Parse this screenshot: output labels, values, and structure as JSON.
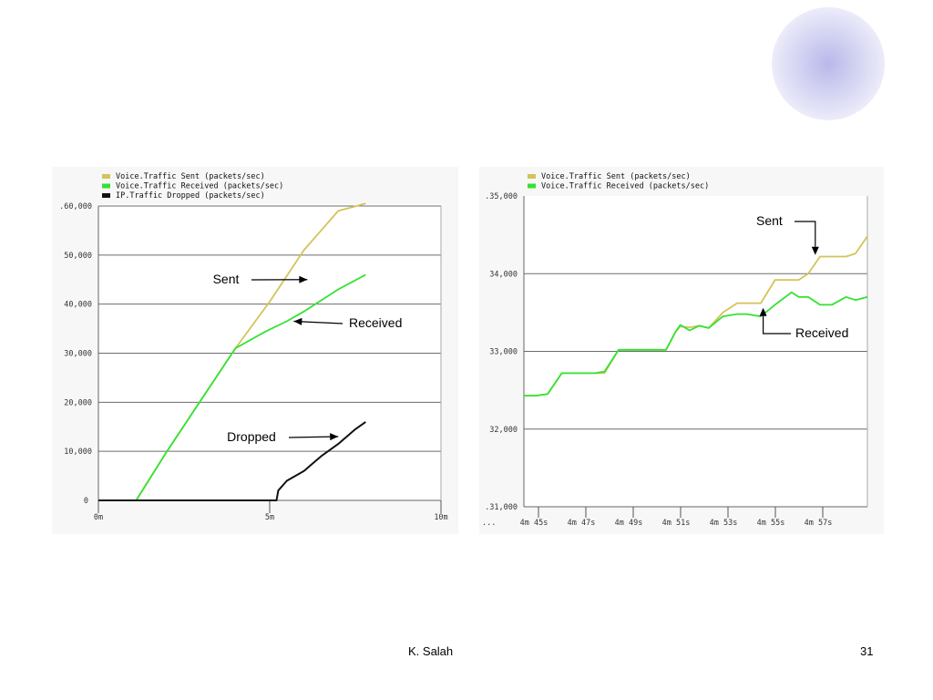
{
  "footer": {
    "author": "K. Salah",
    "page": "31"
  },
  "colors": {
    "sent": "#d4c35a",
    "received": "#33e233",
    "dropped": "#111111",
    "panel_bg": "#f7f7f7",
    "decor_circle": "#c8c8ee"
  },
  "chart_data": [
    {
      "type": "line",
      "x_ticks": [
        "0m",
        "5m",
        "10m"
      ],
      "xlim": [
        0,
        10
      ],
      "y_ticks": [
        "0",
        "10,000",
        "20,000",
        "30,000",
        "40,000",
        "50,000",
        "60,000"
      ],
      "ylim": [
        0,
        60000
      ],
      "grid": true,
      "legend": {
        "position": "top-left",
        "entries": [
          "Voice.Traffic Sent (packets/sec)",
          "Voice.Traffic Received (packets/sec)",
          "IP.Traffic Dropped (packets/sec)"
        ]
      },
      "series": [
        {
          "name": "Voice.Traffic Sent (packets/sec)",
          "color": "#d4c35a",
          "x": [
            0,
            1.1,
            2,
            3,
            4,
            5,
            6,
            7,
            7.8
          ],
          "y": [
            0,
            0,
            10000,
            20500,
            31000,
            40500,
            51000,
            59000,
            60500
          ]
        },
        {
          "name": "Voice.Traffic Received (packets/sec)",
          "color": "#33e233",
          "x": [
            0,
            1.1,
            2,
            3,
            4,
            4.9,
            5.5,
            6,
            7,
            7.8
          ],
          "y": [
            0,
            0,
            10000,
            20500,
            31000,
            34500,
            36500,
            38500,
            43000,
            46000
          ]
        },
        {
          "name": "IP.Traffic Dropped (packets/sec)",
          "color": "#111111",
          "x": [
            0,
            5.2,
            5.25,
            5.5,
            6,
            6.5,
            7,
            7.5,
            7.8
          ],
          "y": [
            0,
            0,
            2000,
            4000,
            6000,
            9000,
            11500,
            14500,
            16000
          ]
        }
      ],
      "annotations": [
        {
          "text": "Sent",
          "target_x": 6.1,
          "target_y": 45000
        },
        {
          "text": "Received",
          "target_x": 5.7,
          "target_y": 36500
        },
        {
          "text": "Dropped",
          "target_x": 7.0,
          "target_y": 13000
        }
      ]
    },
    {
      "type": "line",
      "x_ticks": [
        "4m 45s",
        "4m 47s",
        "4m 49s",
        "4m 51s",
        "4m 53s",
        "4m 55s",
        "4m 57s"
      ],
      "x_prefix": "...",
      "xlim": [
        284,
        298.5
      ],
      "y_ticks": [
        "31,000",
        "32,000",
        "33,000",
        "34,000",
        "35,000"
      ],
      "ylim": [
        31000,
        35000
      ],
      "grid": true,
      "legend": {
        "position": "top-left",
        "entries": [
          "Voice.Traffic Sent (packets/sec)",
          "Voice.Traffic Received (packets/sec)"
        ]
      },
      "series": [
        {
          "name": "Voice.Traffic Sent (packets/sec)",
          "color": "#d4c35a",
          "x": [
            284,
            284.5,
            285,
            285.6,
            286,
            287,
            287.4,
            288,
            289,
            289.4,
            290,
            290.4,
            290.6,
            291,
            291.4,
            291.8,
            292.4,
            293,
            293.4,
            294,
            294.6,
            295.3,
            295.6,
            296,
            296.5,
            297,
            297.6,
            298,
            298.5
          ],
          "y": [
            32430,
            32430,
            32450,
            32720,
            32720,
            32720,
            32720,
            33020,
            33020,
            33020,
            33020,
            33250,
            33320,
            33310,
            33330,
            33300,
            33500,
            33620,
            33620,
            33620,
            33920,
            33920,
            33920,
            34000,
            34220,
            34220,
            34220,
            34260,
            34480
          ]
        },
        {
          "name": "Voice.Traffic Received (packets/sec)",
          "color": "#33e233",
          "x": [
            284,
            284.5,
            285,
            285.6,
            286,
            287,
            287.4,
            288,
            289,
            289.4,
            290,
            290.4,
            290.6,
            291,
            291.4,
            291.8,
            292.4,
            293,
            293.4,
            294,
            294.6,
            295.3,
            295.6,
            296,
            296.5,
            297,
            297.6,
            298,
            298.5
          ],
          "y": [
            32430,
            32430,
            32450,
            32720,
            32720,
            32720,
            32740,
            33020,
            33020,
            33020,
            33020,
            33250,
            33340,
            33270,
            33330,
            33300,
            33450,
            33480,
            33480,
            33450,
            33600,
            33760,
            33700,
            33700,
            33600,
            33600,
            33700,
            33660,
            33700
          ]
        }
      ],
      "annotations": [
        {
          "text": "Sent",
          "target_x": 296.3,
          "target_y": 34240
        },
        {
          "text": "Received",
          "target_x": 294.1,
          "target_y": 33560
        }
      ]
    }
  ]
}
